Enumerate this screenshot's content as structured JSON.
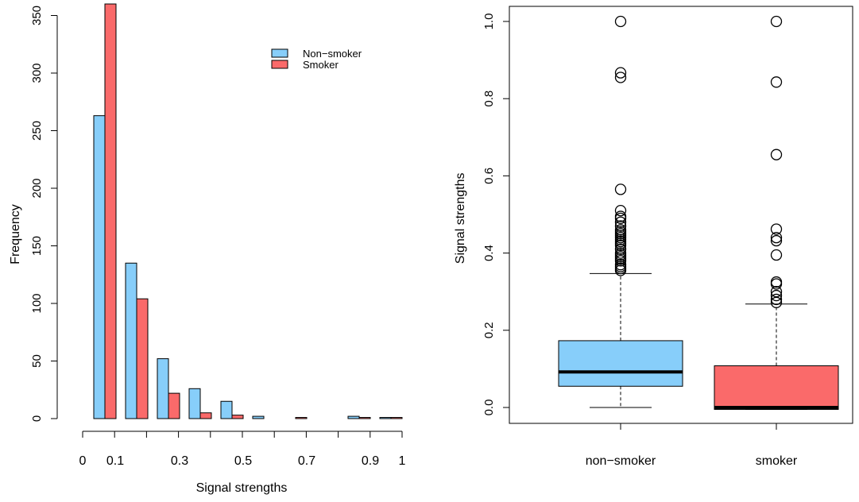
{
  "chart_data": [
    {
      "type": "bar",
      "xlabel": "Signal strengths",
      "ylabel": "Frequency",
      "categories": [
        "0-0.1",
        "0.1-0.2",
        "0.2-0.3",
        "0.3-0.4",
        "0.4-0.5",
        "0.5-0.6",
        "0.6-0.7",
        "0.7-0.8",
        "0.8-0.9",
        "0.9-1"
      ],
      "x_tick_labels": [
        "0",
        "0.1",
        "0.3",
        "0.5",
        "0.7",
        "0.9",
        "1"
      ],
      "y_ticks": [
        0,
        50,
        100,
        150,
        200,
        250,
        300,
        350
      ],
      "ylim": [
        0,
        360
      ],
      "legend_position": "top-right",
      "series": [
        {
          "name": "Non−smoker",
          "color": "#87CEFA",
          "values": [
            263,
            135,
            52,
            26,
            15,
            2,
            0,
            0,
            2,
            1
          ]
        },
        {
          "name": "Smoker",
          "color": "#FA6A6A",
          "values": [
            360,
            104,
            22,
            5,
            3,
            0,
            1,
            0,
            1,
            1
          ]
        }
      ]
    },
    {
      "type": "box",
      "ylabel": "Signal strengths",
      "categories": [
        "non−smoker",
        "smoker"
      ],
      "y_ticks": [
        "0.0",
        "0.2",
        "0.4",
        "0.6",
        "0.8",
        "1.0"
      ],
      "ylim": [
        0,
        1
      ],
      "boxes": [
        {
          "color": "#87CEFA",
          "whisker_low": 0.0,
          "q1": 0.055,
          "median": 0.092,
          "q3": 0.173,
          "whisker_high": 0.347,
          "outliers": [
            0.355,
            0.36,
            0.365,
            0.37,
            0.38,
            0.385,
            0.39,
            0.395,
            0.4,
            0.41,
            0.42,
            0.425,
            0.43,
            0.435,
            0.44,
            0.445,
            0.45,
            0.455,
            0.46,
            0.47,
            0.48,
            0.49,
            0.495,
            0.51,
            0.565,
            0.855,
            0.867,
            1.0
          ]
        },
        {
          "color": "#FA6A6A",
          "whisker_low": -0.005,
          "q1": -0.005,
          "median": 0.0,
          "q3": 0.108,
          "whisker_high": 0.268,
          "outliers": [
            0.272,
            0.28,
            0.29,
            0.3,
            0.32,
            0.325,
            0.395,
            0.432,
            0.44,
            0.462,
            0.655,
            0.843,
            1.0
          ]
        }
      ]
    }
  ]
}
